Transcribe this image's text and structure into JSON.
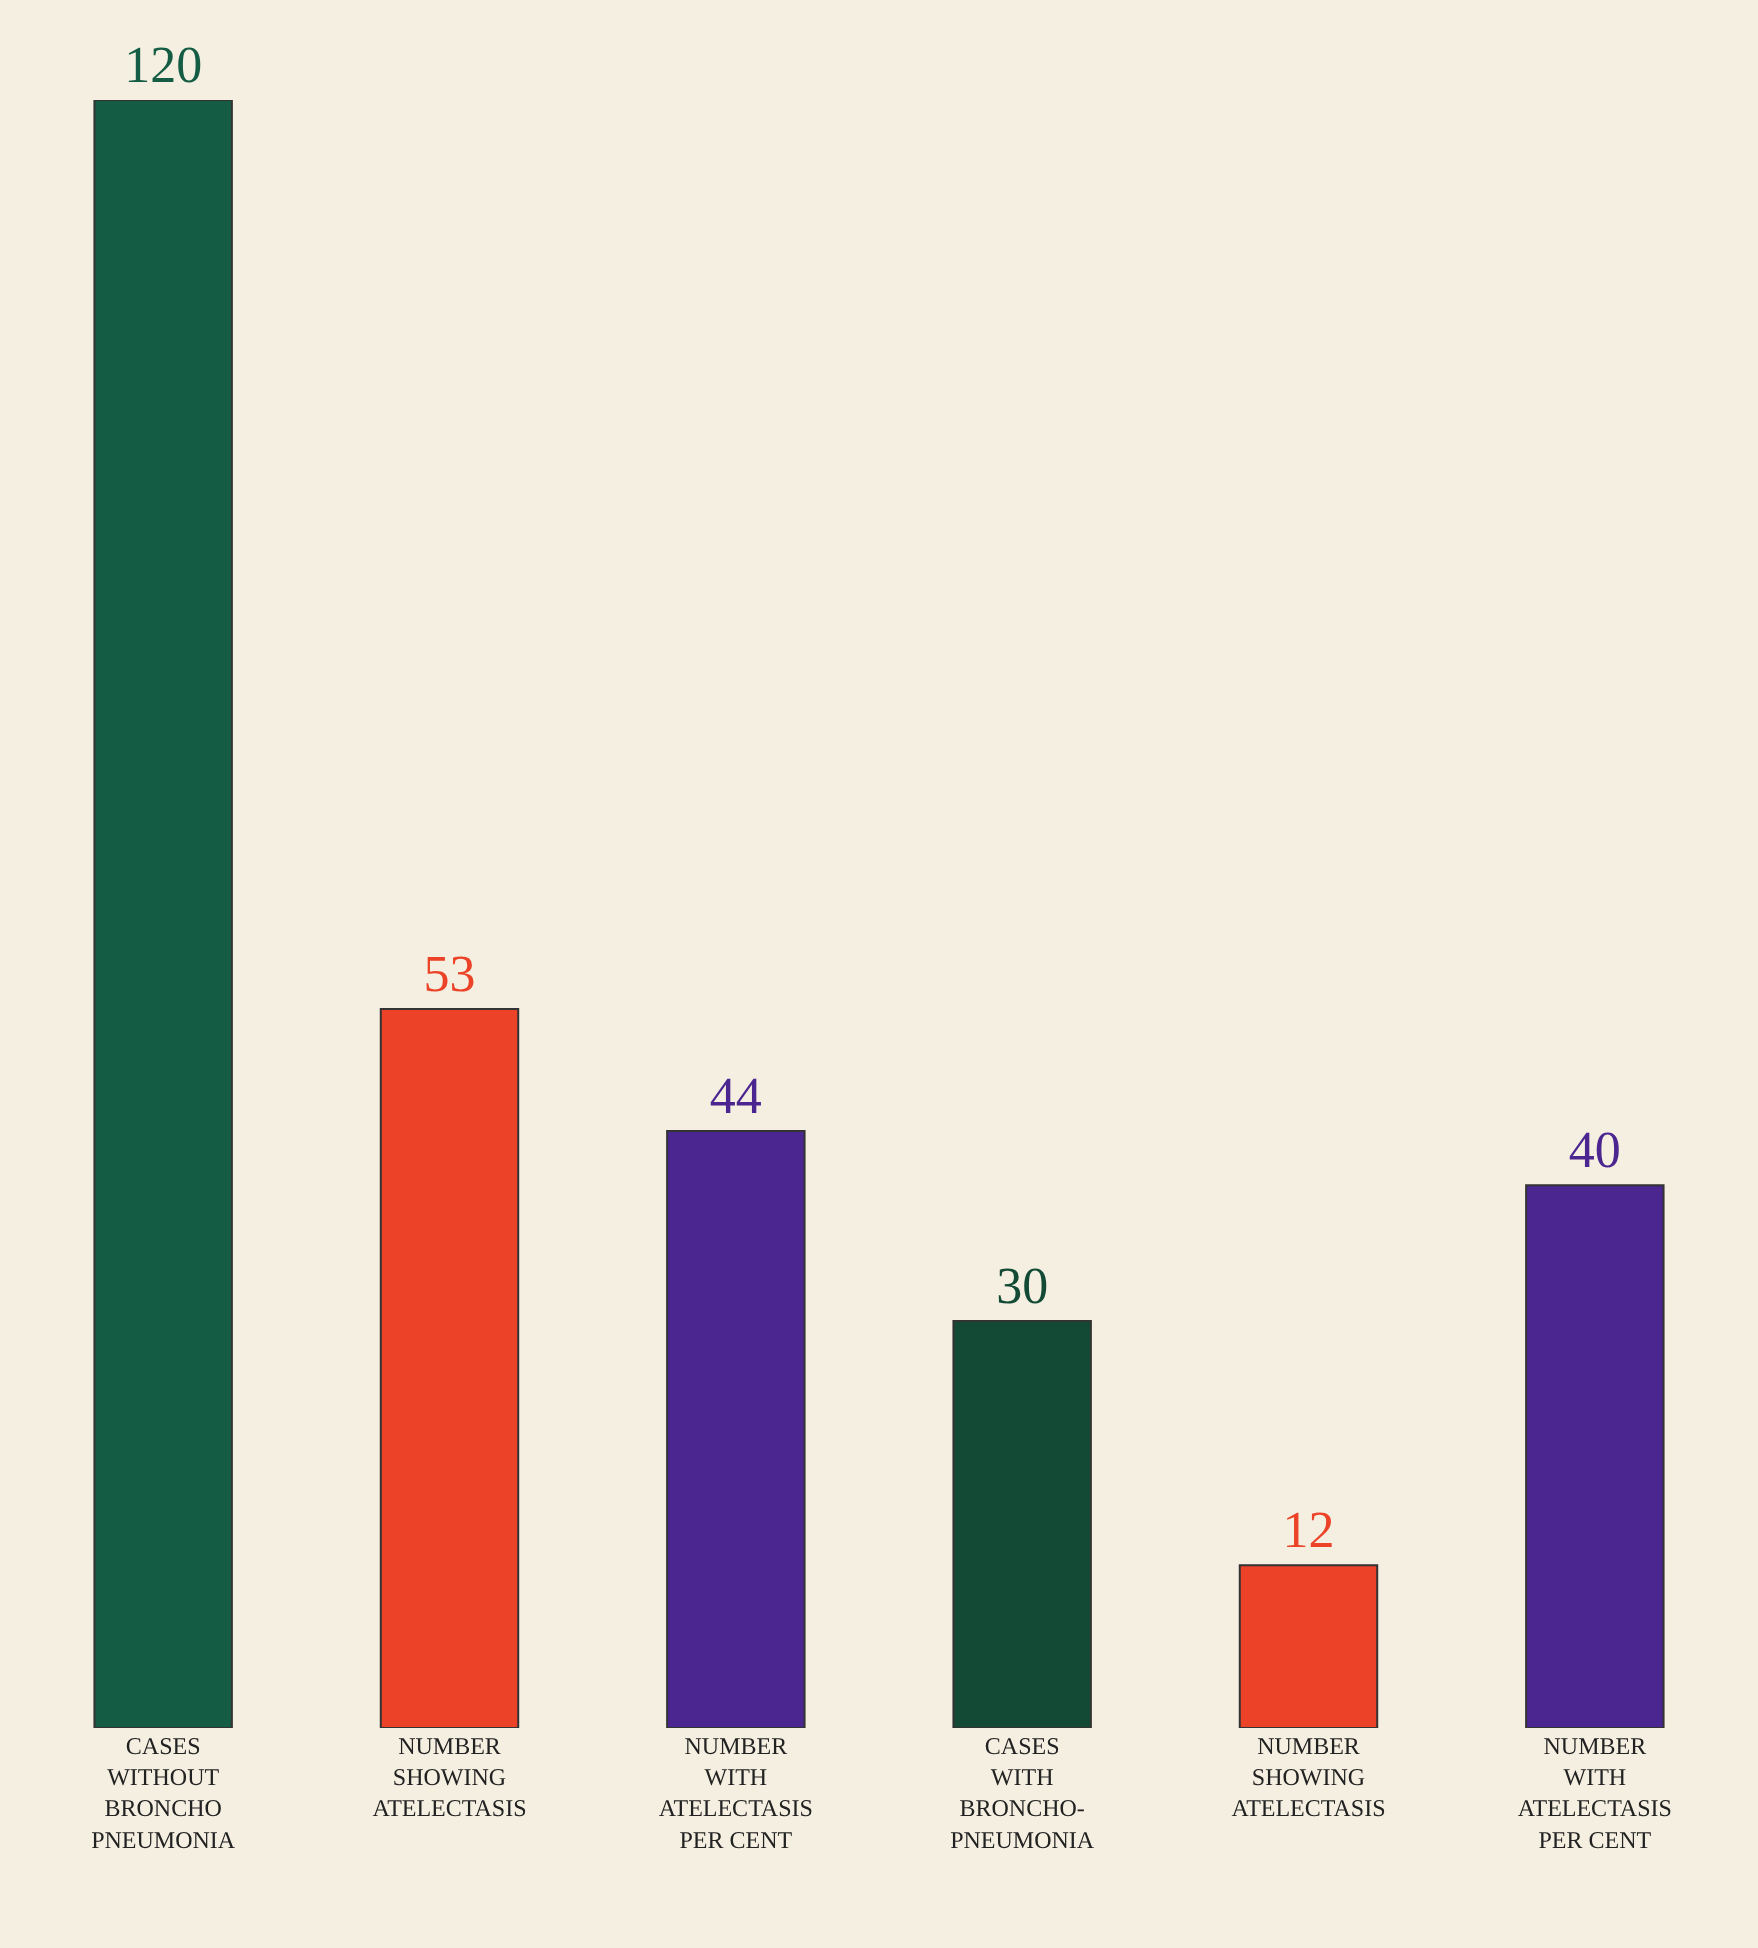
{
  "chart_data": {
    "type": "bar",
    "categories": [
      "CASES\nWITHOUT\nBRONCHO\nPNEUMONIA",
      "NUMBER\nSHOWING\nATELECTASIS",
      "NUMBER\nWITH\nATELECTASIS\nPER CENT",
      "CASES\nWITH\nBRONCHO-\nPNEUMONIA",
      "NUMBER\nSHOWING\nATELECTASIS",
      "NUMBER\nWITH\nATELECTASIS\nPER CENT"
    ],
    "values": [
      120,
      53,
      44,
      30,
      12,
      40
    ],
    "colors": [
      "#145c44",
      "#ec4328",
      "#4b2590",
      "#134a35",
      "#ec4328",
      "#4b2590"
    ],
    "data_labels": true
  }
}
